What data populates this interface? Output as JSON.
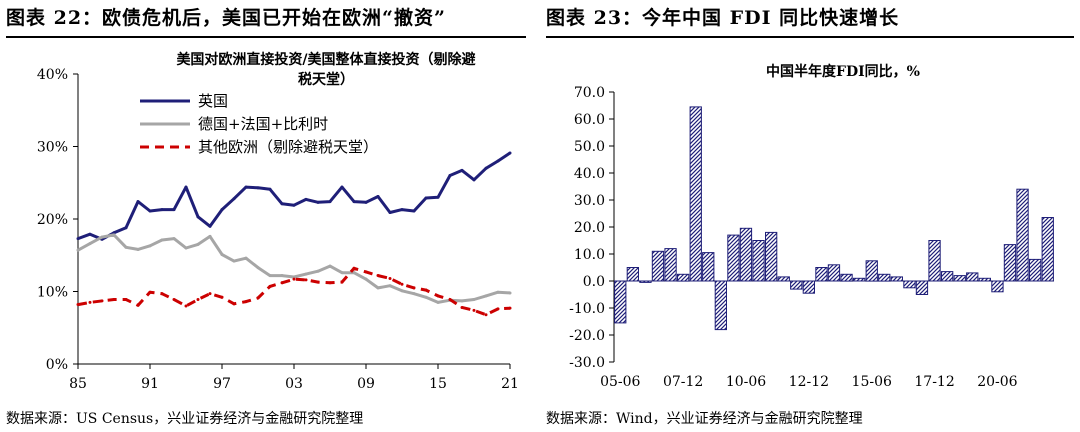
{
  "left": {
    "figure_title": "图表 22：欧债危机后，美国已开始在欧洲“撤资”",
    "source": "数据来源：US Census，兴业证券经济与金融研究院整理"
  },
  "right": {
    "figure_title": "图表 23：今年中国 FDI 同比快速增长",
    "source": "数据来源：Wind，兴业证券经济与金融研究院整理"
  },
  "chart_data": [
    {
      "type": "line",
      "title_line1": "美国对欧洲直接投资/美国整体直接投资（剔除避",
      "title_line2": "税天堂）",
      "x": [
        1985,
        1986,
        1987,
        1988,
        1989,
        1990,
        1991,
        1992,
        1993,
        1994,
        1995,
        1996,
        1997,
        1998,
        1999,
        2000,
        2001,
        2002,
        2003,
        2004,
        2005,
        2006,
        2007,
        2008,
        2009,
        2010,
        2011,
        2012,
        2013,
        2014,
        2015,
        2016,
        2017,
        2018,
        2019,
        2020,
        2021
      ],
      "xticks": [
        1985,
        1991,
        1997,
        2003,
        2009,
        2015,
        2021
      ],
      "xtick_labels": [
        "85",
        "91",
        "97",
        "03",
        "09",
        "15",
        "21"
      ],
      "ylim": [
        0,
        40
      ],
      "yticks": [
        0,
        10,
        20,
        30,
        40
      ],
      "ytick_labels": [
        "0%",
        "10%",
        "20%",
        "30%",
        "40%"
      ],
      "series": [
        {
          "name": "英国",
          "color": "#1f1f78",
          "dash": "solid",
          "values": [
            17.3,
            17.9,
            17.2,
            18.1,
            18.8,
            22.4,
            21.1,
            21.3,
            21.3,
            24.4,
            20.3,
            19.0,
            21.3,
            22.8,
            24.4,
            24.3,
            24.1,
            22.1,
            21.9,
            22.7,
            22.3,
            22.4,
            24.4,
            22.4,
            22.3,
            23.1,
            20.9,
            21.3,
            21.1,
            22.9,
            23.0,
            26.0,
            26.7,
            25.4,
            27.0,
            28.0,
            29.1
          ]
        },
        {
          "name": "德国+法国+比利时",
          "color": "#a6a6a6",
          "dash": "solid",
          "values": [
            15.7,
            16.6,
            17.5,
            17.8,
            16.1,
            15.8,
            16.3,
            17.1,
            17.3,
            16.0,
            16.5,
            17.6,
            15.1,
            14.2,
            14.6,
            13.3,
            12.2,
            12.2,
            12.0,
            12.4,
            12.8,
            13.5,
            12.6,
            12.6,
            11.7,
            10.5,
            10.8,
            10.1,
            9.7,
            9.2,
            8.5,
            8.8,
            8.7,
            8.9,
            9.4,
            9.9,
            9.8
          ]
        },
        {
          "name": "其他欧洲（剔除避税天堂）",
          "color": "#cc0000",
          "dash": "dashed",
          "values": [
            8.2,
            8.5,
            8.7,
            8.9,
            8.9,
            8.1,
            9.9,
            9.7,
            8.9,
            8.0,
            8.9,
            9.7,
            9.2,
            8.3,
            8.6,
            9.1,
            10.7,
            11.2,
            11.7,
            11.6,
            11.3,
            11.2,
            11.3,
            13.2,
            12.7,
            12.2,
            11.8,
            11.0,
            10.5,
            10.2,
            9.4,
            8.9,
            7.8,
            7.4,
            6.8,
            7.6,
            7.7
          ]
        }
      ]
    },
    {
      "type": "bar",
      "title": "中国半年度FDI同比，%",
      "ylim": [
        -30,
        70
      ],
      "yticks": [
        -30,
        -20,
        -10,
        0,
        10,
        20,
        30,
        40,
        50,
        60,
        70
      ],
      "ytick_labels": [
        "-30.0",
        "-20.0",
        "-10.0",
        "0.0",
        "10.0",
        "20.0",
        "30.0",
        "40.0",
        "50.0",
        "60.0",
        "70.0"
      ],
      "xtick_labels": [
        "05-06",
        "07-12",
        "10-06",
        "12-12",
        "15-06",
        "17-12",
        "20-06"
      ],
      "xtick_positions": [
        0,
        5,
        10,
        15,
        20,
        25,
        30
      ],
      "bar_color": "#1f1f78",
      "values": [
        -15.5,
        5.0,
        -0.5,
        11.0,
        12.0,
        2.5,
        64.5,
        10.5,
        -18.0,
        17.0,
        19.5,
        15.0,
        18.0,
        1.5,
        -3.0,
        -4.5,
        5.0,
        6.0,
        2.5,
        1.0,
        7.5,
        2.5,
        1.5,
        -2.5,
        -5.0,
        15.0,
        3.5,
        2.0,
        3.0,
        1.0,
        -4.0,
        13.5,
        34.0,
        8.0,
        23.5
      ]
    }
  ]
}
